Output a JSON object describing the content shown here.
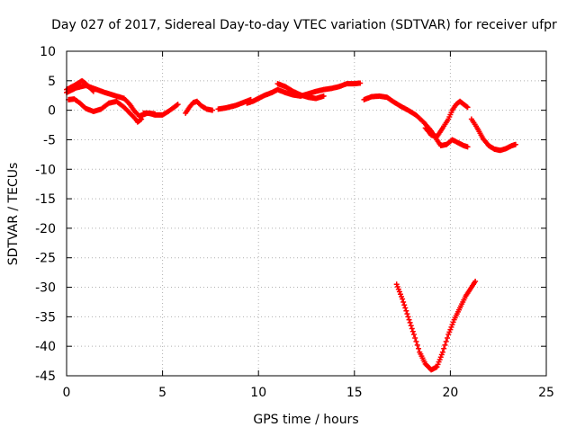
{
  "chart_data": {
    "type": "scatter",
    "title": "Day 027 of 2017, Sidereal Day-to-day VTEC variation (SDTVAR) for receiver ufpr",
    "xlabel": "GPS time / hours",
    "ylabel": "SDTVAR / TECUs",
    "xlim": [
      0,
      25
    ],
    "ylim": [
      -45,
      10
    ],
    "xticks": [
      0,
      5,
      10,
      15,
      20,
      25
    ],
    "yticks": [
      10,
      5,
      0,
      -5,
      -10,
      -15,
      -20,
      -25,
      -30,
      -35,
      -40,
      -45
    ],
    "grid": true,
    "legend": "none",
    "marker": "+",
    "color": "#ff0000",
    "series": [
      {
        "tracks": [
          [
            [
              0.0,
              3.0
            ],
            [
              0.5,
              3.8
            ],
            [
              1.0,
              4.2
            ],
            [
              1.5,
              3.6
            ],
            [
              2.0,
              3.0
            ],
            [
              2.5,
              2.5
            ],
            [
              3.0,
              2.0
            ],
            [
              3.3,
              1.0
            ],
            [
              3.5,
              0.0
            ],
            [
              3.8,
              -1.0
            ],
            [
              4.2,
              -0.5
            ],
            [
              4.6,
              -0.6
            ]
          ],
          [
            [
              0.0,
              3.5
            ],
            [
              0.4,
              4.2
            ],
            [
              0.8,
              5.0
            ],
            [
              1.0,
              4.5
            ],
            [
              1.4,
              3.2
            ]
          ],
          [
            [
              0.1,
              1.8
            ],
            [
              0.4,
              1.9
            ],
            [
              0.7,
              1.2
            ],
            [
              1.0,
              0.3
            ],
            [
              1.4,
              -0.2
            ],
            [
              1.8,
              0.2
            ],
            [
              2.2,
              1.2
            ],
            [
              2.6,
              1.5
            ],
            [
              3.0,
              0.5
            ],
            [
              3.3,
              -0.5
            ],
            [
              3.6,
              -1.5
            ],
            [
              3.7,
              -2.0
            ],
            [
              3.9,
              -1.5
            ],
            [
              4.0,
              -0.5
            ],
            [
              4.3,
              -0.5
            ],
            [
              4.6,
              -0.8
            ],
            [
              5.0,
              -0.8
            ],
            [
              5.3,
              -0.2
            ],
            [
              5.6,
              0.5
            ],
            [
              5.8,
              1.0
            ]
          ],
          [
            [
              6.2,
              -0.5
            ],
            [
              6.4,
              0.5
            ],
            [
              6.6,
              1.3
            ],
            [
              6.8,
              1.5
            ],
            [
              7.0,
              0.8
            ],
            [
              7.3,
              0.2
            ],
            [
              7.6,
              0.0
            ]
          ],
          [
            [
              7.9,
              0.2
            ],
            [
              8.3,
              0.4
            ],
            [
              8.8,
              0.8
            ],
            [
              9.2,
              1.3
            ],
            [
              9.6,
              1.8
            ]
          ],
          [
            [
              9.4,
              1.2
            ],
            [
              9.7,
              1.5
            ],
            [
              10.0,
              2.0
            ],
            [
              10.3,
              2.5
            ],
            [
              10.7,
              3.0
            ],
            [
              11.0,
              3.5
            ],
            [
              11.4,
              3.0
            ],
            [
              11.8,
              2.6
            ],
            [
              12.2,
              2.4
            ],
            [
              12.6,
              2.8
            ],
            [
              13.0,
              3.2
            ],
            [
              13.4,
              3.5
            ],
            [
              13.8,
              3.7
            ],
            [
              14.2,
              4.0
            ],
            [
              14.6,
              4.5
            ],
            [
              15.0,
              4.5
            ],
            [
              15.3,
              4.6
            ]
          ],
          [
            [
              11.0,
              4.5
            ],
            [
              11.4,
              4.0
            ],
            [
              11.8,
              3.2
            ],
            [
              12.2,
              2.6
            ],
            [
              12.6,
              2.2
            ],
            [
              13.0,
              2.0
            ],
            [
              13.4,
              2.4
            ]
          ],
          [
            [
              15.5,
              1.8
            ],
            [
              15.9,
              2.3
            ],
            [
              16.3,
              2.4
            ],
            [
              16.7,
              2.2
            ],
            [
              17.0,
              1.5
            ],
            [
              17.4,
              0.7
            ],
            [
              17.8,
              0.0
            ],
            [
              18.2,
              -0.8
            ],
            [
              18.6,
              -2.0
            ],
            [
              19.0,
              -3.5
            ],
            [
              19.3,
              -5.0
            ],
            [
              19.5,
              -6.0
            ],
            [
              19.8,
              -5.8
            ],
            [
              20.1,
              -5.0
            ],
            [
              20.4,
              -5.5
            ],
            [
              20.7,
              -6.0
            ],
            [
              20.9,
              -6.2
            ]
          ],
          [
            [
              18.7,
              -3.0
            ],
            [
              19.0,
              -4.2
            ],
            [
              19.3,
              -4.5
            ],
            [
              19.6,
              -3.0
            ],
            [
              19.9,
              -1.5
            ],
            [
              20.1,
              0.0
            ],
            [
              20.3,
              1.0
            ],
            [
              20.5,
              1.5
            ],
            [
              20.7,
              1.0
            ],
            [
              20.9,
              0.5
            ]
          ],
          [
            [
              21.1,
              -1.5
            ],
            [
              21.4,
              -3.0
            ],
            [
              21.7,
              -4.8
            ],
            [
              22.0,
              -6.0
            ],
            [
              22.3,
              -6.6
            ],
            [
              22.6,
              -6.8
            ],
            [
              22.9,
              -6.5
            ],
            [
              23.2,
              -6.0
            ],
            [
              23.4,
              -5.8
            ]
          ],
          [
            [
              17.2,
              -29.5
            ],
            [
              17.5,
              -32.0
            ],
            [
              17.8,
              -35.0
            ],
            [
              18.1,
              -38.0
            ],
            [
              18.4,
              -41.0
            ],
            [
              18.7,
              -43.0
            ],
            [
              19.0,
              -44.0
            ],
            [
              19.3,
              -43.5
            ],
            [
              19.6,
              -41.0
            ],
            [
              19.9,
              -38.0
            ],
            [
              20.2,
              -35.5
            ],
            [
              20.5,
              -33.5
            ],
            [
              20.8,
              -31.5
            ],
            [
              21.1,
              -30.0
            ],
            [
              21.3,
              -29.0
            ]
          ]
        ]
      }
    ]
  }
}
